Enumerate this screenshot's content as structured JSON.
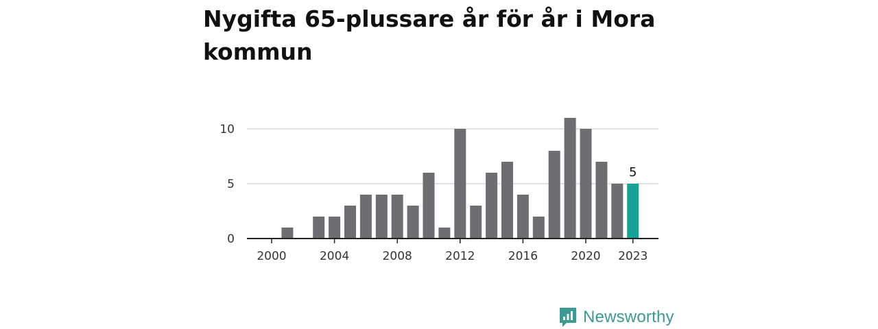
{
  "chart_data": {
    "type": "bar",
    "title": "Nygifta 65-plussare år för år i Mora kommun",
    "xlabel": "",
    "ylabel": "",
    "x": [
      2000,
      2001,
      2002,
      2003,
      2004,
      2005,
      2006,
      2007,
      2008,
      2009,
      2010,
      2011,
      2012,
      2013,
      2014,
      2015,
      2016,
      2017,
      2018,
      2019,
      2020,
      2021,
      2022,
      2023
    ],
    "values": [
      0,
      1,
      0,
      2,
      2,
      3,
      4,
      4,
      4,
      3,
      6,
      1,
      10,
      3,
      6,
      7,
      4,
      2,
      8,
      11,
      10,
      7,
      5,
      5
    ],
    "ylim": [
      0,
      11
    ],
    "yticks": [
      0,
      5,
      10
    ],
    "xticks": [
      2000,
      2004,
      2008,
      2012,
      2016,
      2020,
      2023
    ],
    "highlight": {
      "year": 2023,
      "label": "5"
    },
    "grid": true,
    "colors": {
      "bar": "#6e6d72",
      "highlight": "#14a396",
      "grid": "#d9d9d9",
      "axis": "#222222"
    }
  },
  "brand": {
    "name": "Newsworthy",
    "icon": "newsworthy-logo-icon",
    "color": "#3a9a96"
  }
}
